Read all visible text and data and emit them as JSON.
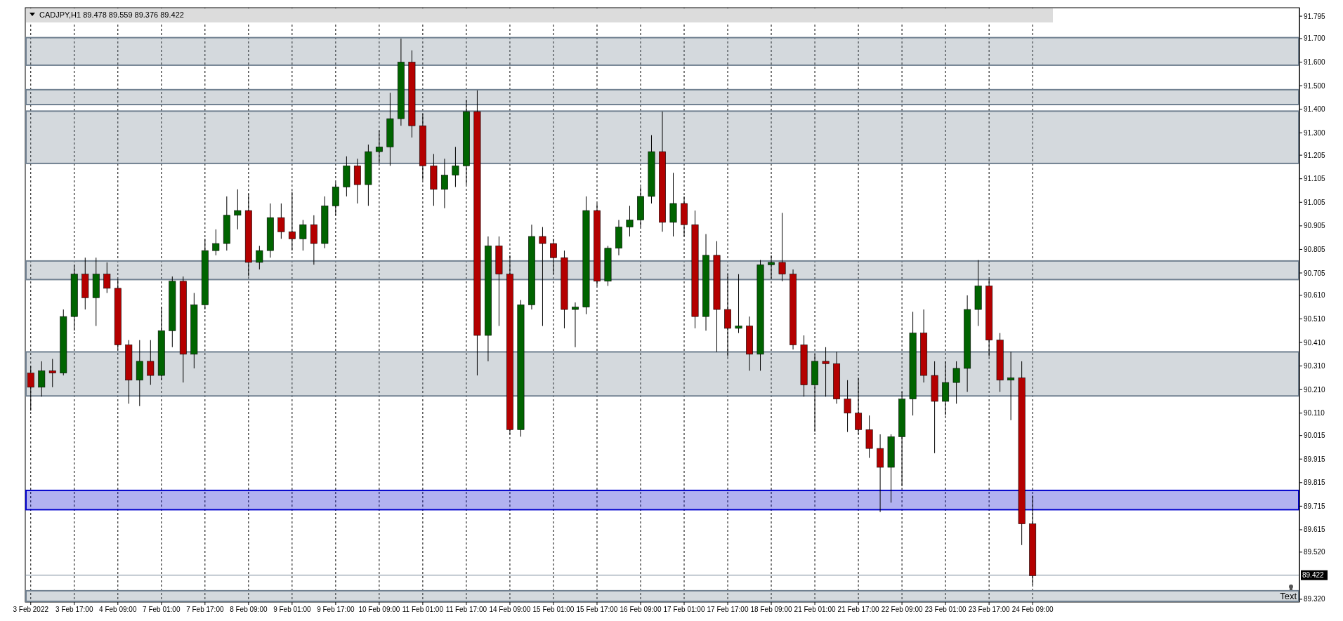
{
  "chart_data": {
    "type": "candlestick",
    "title": "CADJPY,H1  89.478 89.559 89.376 89.422",
    "categories": [
      "3 Feb 2022",
      null,
      null,
      null,
      "3 Feb 17:00",
      null,
      null,
      null,
      "4 Feb 09:00",
      null,
      null,
      null,
      "7 Feb 01:00",
      null,
      null,
      null,
      "7 Feb 17:00",
      null,
      null,
      null,
      "8 Feb 09:00",
      null,
      null,
      null,
      "9 Feb 01:00",
      null,
      null,
      null,
      "9 Feb 17:00",
      null,
      null,
      null,
      "10 Feb 09:00",
      null,
      null,
      null,
      "11 Feb 01:00",
      null,
      null,
      null,
      "11 Feb 17:00",
      null,
      null,
      null,
      "14 Feb 09:00",
      null,
      null,
      null,
      "15 Feb 01:00",
      null,
      null,
      null,
      "15 Feb 17:00",
      null,
      null,
      null,
      "16 Feb 09:00",
      null,
      null,
      null,
      "17 Feb 01:00",
      null,
      null,
      null,
      "17 Feb 17:00",
      null,
      null,
      null,
      "18 Feb 09:00",
      null,
      null,
      null,
      "21 Feb 01:00",
      null,
      null,
      null,
      "21 Feb 17:00",
      null,
      null,
      null,
      "22 Feb 09:00",
      null,
      null,
      null,
      "23 Feb 01:00",
      null,
      null,
      null,
      "23 Feb 17:00",
      null,
      null,
      null,
      "24 Feb 09:00",
      null,
      null,
      null,
      null,
      null,
      null,
      null,
      null,
      null,
      null,
      null,
      null,
      null,
      null,
      null,
      null,
      null,
      null,
      null,
      null,
      null,
      null,
      null,
      null
    ],
    "ohlc": [
      [
        90.28,
        90.31,
        90.12,
        90.22
      ],
      [
        90.22,
        90.33,
        90.18,
        90.29
      ],
      [
        90.29,
        90.34,
        90.22,
        90.28
      ],
      [
        90.28,
        90.55,
        90.27,
        90.52
      ],
      [
        90.52,
        90.74,
        90.46,
        90.7
      ],
      [
        90.7,
        90.77,
        90.55,
        90.6
      ],
      [
        90.6,
        90.77,
        90.48,
        90.7
      ],
      [
        90.7,
        90.75,
        90.62,
        90.64
      ],
      [
        90.64,
        90.68,
        90.38,
        90.4
      ],
      [
        90.4,
        90.42,
        90.15,
        90.25
      ],
      [
        90.25,
        90.42,
        90.14,
        90.33
      ],
      [
        90.33,
        90.42,
        90.23,
        90.27
      ],
      [
        90.27,
        90.56,
        90.25,
        90.46
      ],
      [
        90.46,
        90.69,
        90.39,
        90.67
      ],
      [
        90.67,
        90.69,
        90.24,
        90.36
      ],
      [
        90.36,
        90.62,
        90.3,
        90.57
      ],
      [
        90.57,
        90.85,
        90.55,
        90.8
      ],
      [
        90.8,
        90.89,
        90.78,
        90.83
      ],
      [
        90.83,
        91.03,
        90.8,
        90.95
      ],
      [
        90.95,
        91.06,
        90.89,
        90.97
      ],
      [
        90.97,
        91.04,
        90.69,
        90.75
      ],
      [
        90.75,
        90.82,
        90.72,
        90.8
      ],
      [
        90.8,
        91.0,
        90.77,
        90.94
      ],
      [
        90.94,
        91.0,
        90.85,
        90.88
      ],
      [
        90.88,
        91.05,
        90.8,
        90.85
      ],
      [
        90.85,
        90.93,
        90.8,
        90.91
      ],
      [
        90.91,
        90.95,
        90.74,
        90.83
      ],
      [
        90.83,
        91.03,
        90.81,
        90.99
      ],
      [
        90.99,
        91.09,
        90.95,
        91.07
      ],
      [
        91.07,
        91.2,
        91.03,
        91.16
      ],
      [
        91.16,
        91.19,
        91.0,
        91.08
      ],
      [
        91.08,
        91.25,
        90.99,
        91.22
      ],
      [
        91.22,
        91.31,
        91.17,
        91.24
      ],
      [
        91.24,
        91.47,
        91.16,
        91.36
      ],
      [
        91.36,
        91.7,
        91.33,
        91.6
      ],
      [
        91.6,
        91.65,
        91.28,
        91.33
      ],
      [
        91.33,
        91.38,
        91.1,
        91.16
      ],
      [
        91.16,
        91.21,
        90.99,
        91.06
      ],
      [
        91.06,
        91.19,
        90.98,
        91.12
      ],
      [
        91.12,
        91.24,
        91.07,
        91.16
      ],
      [
        91.16,
        91.44,
        91.08,
        91.39
      ],
      [
        91.39,
        91.48,
        90.27,
        90.44
      ],
      [
        90.44,
        90.86,
        90.33,
        90.82
      ],
      [
        90.82,
        90.86,
        90.48,
        90.7
      ],
      [
        90.7,
        90.78,
        90.02,
        90.04
      ],
      [
        90.04,
        90.59,
        90.01,
        90.57
      ],
      [
        90.57,
        90.91,
        90.55,
        90.86
      ],
      [
        90.86,
        90.9,
        90.48,
        90.83
      ],
      [
        90.83,
        90.85,
        90.7,
        90.77
      ],
      [
        90.77,
        90.8,
        90.47,
        90.55
      ],
      [
        90.55,
        90.58,
        90.39,
        90.56
      ],
      [
        90.56,
        91.03,
        90.53,
        90.97
      ],
      [
        90.97,
        91.0,
        90.65,
        90.67
      ],
      [
        90.67,
        90.82,
        90.65,
        90.81
      ],
      [
        90.81,
        90.93,
        90.78,
        90.9
      ],
      [
        90.9,
        90.99,
        90.86,
        90.93
      ],
      [
        90.93,
        91.07,
        90.9,
        91.03
      ],
      [
        91.03,
        91.29,
        91.0,
        91.22
      ],
      [
        91.22,
        91.39,
        90.88,
        90.92
      ],
      [
        90.92,
        91.13,
        90.86,
        91.0
      ],
      [
        91.0,
        91.03,
        90.86,
        90.91
      ],
      [
        90.91,
        90.97,
        90.47,
        90.52
      ],
      [
        90.52,
        90.87,
        90.46,
        90.78
      ],
      [
        90.78,
        90.84,
        90.37,
        90.55
      ],
      [
        90.55,
        90.7,
        90.35,
        90.47
      ],
      [
        90.47,
        90.7,
        90.45,
        90.48
      ],
      [
        90.48,
        90.52,
        90.29,
        90.36
      ],
      [
        90.36,
        90.76,
        90.29,
        90.74
      ],
      [
        90.74,
        90.78,
        90.68,
        90.75
      ],
      [
        90.75,
        90.96,
        90.67,
        90.7
      ],
      [
        90.7,
        90.72,
        90.38,
        90.4
      ],
      [
        90.4,
        90.44,
        90.18,
        90.23
      ],
      [
        90.23,
        90.36,
        90.03,
        90.33
      ],
      [
        90.33,
        90.39,
        90.18,
        90.32
      ],
      [
        90.32,
        90.37,
        90.15,
        90.17
      ],
      [
        90.17,
        90.25,
        90.03,
        90.11
      ],
      [
        90.11,
        90.26,
        90.02,
        90.04
      ],
      [
        90.04,
        90.1,
        89.92,
        89.96
      ],
      [
        89.96,
        90.02,
        89.69,
        89.88
      ],
      [
        89.88,
        90.02,
        89.73,
        90.01
      ],
      [
        90.01,
        90.2,
        89.8,
        90.17
      ],
      [
        90.17,
        90.54,
        90.1,
        90.45
      ],
      [
        90.45,
        90.55,
        90.24,
        90.27
      ],
      [
        90.27,
        90.33,
        89.94,
        90.16
      ],
      [
        90.16,
        90.33,
        90.1,
        90.24
      ],
      [
        90.24,
        90.33,
        90.15,
        90.3
      ],
      [
        90.3,
        90.61,
        90.2,
        90.55
      ],
      [
        90.55,
        90.76,
        90.48,
        90.65
      ],
      [
        90.65,
        90.68,
        90.35,
        90.42
      ],
      [
        90.42,
        90.45,
        90.2,
        90.25
      ],
      [
        90.25,
        90.37,
        90.08,
        90.26
      ],
      [
        90.26,
        90.33,
        89.55,
        89.64
      ],
      [
        89.64,
        89.76,
        89.38,
        89.42
      ],
      null,
      null,
      null,
      null,
      null,
      null,
      null,
      null,
      null,
      null,
      null,
      null,
      null,
      null,
      null,
      null,
      null,
      null,
      null,
      null,
      null,
      null,
      null,
      null
    ],
    "colors": [
      "#b40000",
      "#006400",
      "#b40000",
      "#006400",
      "#006400",
      "#b40000",
      "#006400",
      "#b40000",
      "#b40000",
      "#b40000",
      "#006400",
      "#b40000",
      "#006400",
      "#006400",
      "#b40000",
      "#006400",
      "#006400",
      "#006400",
      "#006400",
      "#006400",
      "#b40000",
      "#006400",
      "#006400",
      "#b40000",
      "#b40000",
      "#006400",
      "#b40000",
      "#006400",
      "#006400",
      "#006400",
      "#b40000",
      "#006400",
      "#006400",
      "#006400",
      "#006400",
      "#b40000",
      "#b40000",
      "#b40000",
      "#006400",
      "#006400",
      "#006400",
      "#b40000",
      "#006400",
      "#b40000",
      "#b40000",
      "#006400",
      "#006400",
      "#b40000",
      "#b40000",
      "#b40000",
      "#006400",
      "#006400",
      "#b40000",
      "#006400",
      "#006400",
      "#006400",
      "#006400",
      "#006400",
      "#b40000",
      "#006400",
      "#b40000",
      "#b40000",
      "#006400",
      "#b40000",
      "#b40000",
      "#006400",
      "#b40000",
      "#006400",
      "#006400",
      "#b40000",
      "#b40000",
      "#b40000",
      "#006400",
      "#b40000",
      "#b40000",
      "#b40000",
      "#b40000",
      "#b40000",
      "#b40000",
      "#006400",
      "#006400",
      "#006400",
      "#b40000",
      "#b40000",
      "#006400",
      "#006400",
      "#006400",
      "#006400",
      "#b40000",
      "#b40000",
      "#006400",
      "#b40000",
      "#b40000",
      null,
      null,
      null,
      null,
      null,
      null,
      null,
      null,
      null,
      null,
      null,
      null,
      null,
      null,
      null,
      null,
      null,
      null,
      null,
      null,
      null,
      null,
      null,
      null
    ],
    "ylim": [
      89.308,
      91.831
    ],
    "yticks": [
      91.795,
      {
        "value": 91.7,
        "label": "91.700"
      },
      {
        "value": 91.6,
        "label": "91.600"
      },
      {
        "value": 91.5,
        "label": "91.500"
      },
      {
        "value": 91.4,
        "label": "91.400"
      },
      {
        "value": 91.3,
        "label": "91.300"
      },
      91.205,
      91.105,
      91.005,
      90.905,
      90.805,
      90.705,
      {
        "value": 90.61,
        "label": "90.610"
      },
      {
        "value": 90.51,
        "label": "90.510"
      },
      {
        "value": 90.41,
        "label": "90.410"
      },
      {
        "value": 90.31,
        "label": "90.310"
      },
      {
        "value": 90.21,
        "label": "90.210"
      },
      {
        "value": 90.11,
        "label": "90.110"
      },
      90.015,
      89.915,
      89.815,
      89.715,
      89.615,
      {
        "value": 89.52,
        "label": "89.520"
      },
      {
        "value": 89.32,
        "label": "89.320"
      }
    ],
    "grid": "x",
    "ref_lines": [
      {
        "axis": "y",
        "value": 89.422,
        "label": "89.422",
        "color": "#778899"
      }
    ],
    "bands": [
      {
        "axis": "y",
        "from": 91.587,
        "to": 91.704,
        "color": "#708090"
      },
      {
        "axis": "y",
        "from": 91.42,
        "to": 91.483,
        "color": "#708090"
      },
      {
        "axis": "y",
        "from": 91.17,
        "to": 91.392,
        "color": "#708090"
      },
      {
        "axis": "y",
        "from": 90.677,
        "to": 90.756,
        "color": "#708090"
      },
      {
        "axis": "y",
        "from": 90.183,
        "to": 90.37,
        "color": "#708090"
      },
      {
        "axis": "y",
        "from": 89.7,
        "to": 89.782,
        "color": "#0000cc"
      },
      {
        "axis": "y",
        "from": 89.311,
        "to": 89.356,
        "color": "#708090"
      }
    ],
    "annotations": [
      "Text"
    ]
  }
}
